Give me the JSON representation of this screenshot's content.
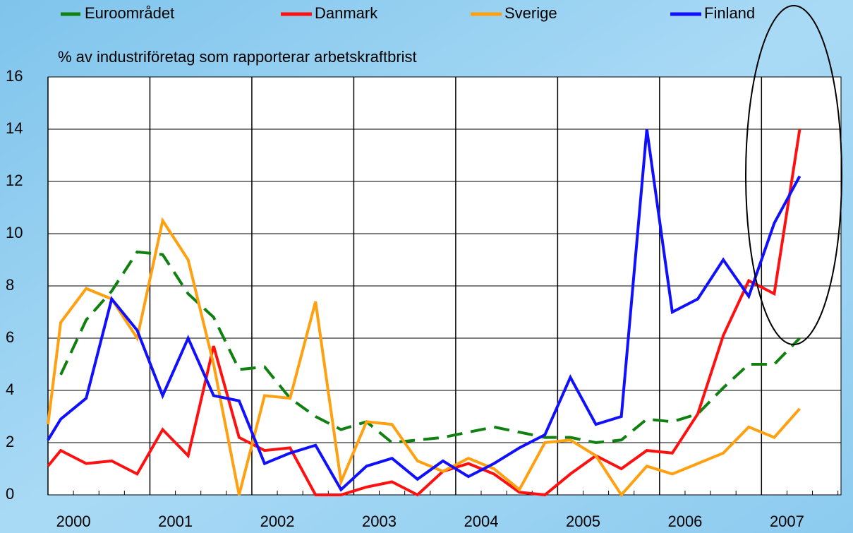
{
  "chart_data": {
    "type": "line",
    "subtitle": "% av industriföretag som rapporterar arbetskraftbrist",
    "x": [
      2000,
      2000.125,
      2000.375,
      2000.625,
      2000.875,
      2001.125,
      2001.375,
      2001.625,
      2001.875,
      2002.125,
      2002.375,
      2002.625,
      2002.875,
      2003.125,
      2003.375,
      2003.625,
      2003.875,
      2004.125,
      2004.375,
      2004.625,
      2004.875,
      2005.125,
      2005.375,
      2005.625,
      2005.875,
      2006.125,
      2006.375,
      2006.625,
      2006.875,
      2007.125,
      2007.375
    ],
    "series": [
      {
        "name": "Euroområdet",
        "color": "#108010",
        "dashed": true,
        "values": [
          null,
          4.6,
          6.7,
          7.8,
          9.3,
          9.2,
          7.7,
          6.8,
          4.8,
          4.9,
          3.7,
          3.0,
          2.5,
          2.8,
          2.0,
          2.1,
          2.2,
          2.4,
          2.6,
          2.4,
          2.2,
          2.2,
          2.0,
          2.1,
          2.9,
          2.8,
          3.1,
          4.1,
          5.0,
          5.0,
          6.0
        ]
      },
      {
        "name": "Danmark",
        "color": "#ff1010",
        "values": [
          1.1,
          1.7,
          1.2,
          1.3,
          0.8,
          2.5,
          1.5,
          5.7,
          2.2,
          1.7,
          1.8,
          0.0,
          0.0,
          0.3,
          0.5,
          0.0,
          0.9,
          1.2,
          0.8,
          0.1,
          0.0,
          0.8,
          1.5,
          1.0,
          1.7,
          1.6,
          3.1,
          6.1,
          8.2,
          7.7,
          14.0
        ]
      },
      {
        "name": "Sverige",
        "color": "#ffa010",
        "values": [
          2.7,
          6.6,
          7.9,
          7.5,
          6.0,
          10.5,
          9.0,
          5.0,
          0.0,
          3.8,
          3.7,
          7.4,
          0.5,
          2.8,
          2.7,
          1.3,
          0.9,
          1.4,
          1.0,
          0.2,
          2.0,
          2.1,
          1.5,
          0.0,
          1.1,
          0.8,
          1.2,
          1.6,
          2.6,
          2.2,
          3.3
        ]
      },
      {
        "name": "Finland",
        "color": "#1010ff",
        "values": [
          2.1,
          2.9,
          3.7,
          7.5,
          6.3,
          3.8,
          6.0,
          3.8,
          3.6,
          1.2,
          1.6,
          1.9,
          0.2,
          1.1,
          1.4,
          0.6,
          1.3,
          0.7,
          1.2,
          1.8,
          2.3,
          4.5,
          2.7,
          3.0,
          14.0,
          7.0,
          7.5,
          9.0,
          7.6,
          10.4,
          12.2
        ]
      }
    ],
    "xlim": [
      2000,
      2007.78
    ],
    "xticks": [
      2000,
      2001,
      2002,
      2003,
      2004,
      2005,
      2006,
      2007
    ],
    "ylim": [
      0,
      16
    ],
    "yticks": [
      0,
      2,
      4,
      6,
      8,
      10,
      12,
      14,
      16
    ],
    "grid": true
  }
}
